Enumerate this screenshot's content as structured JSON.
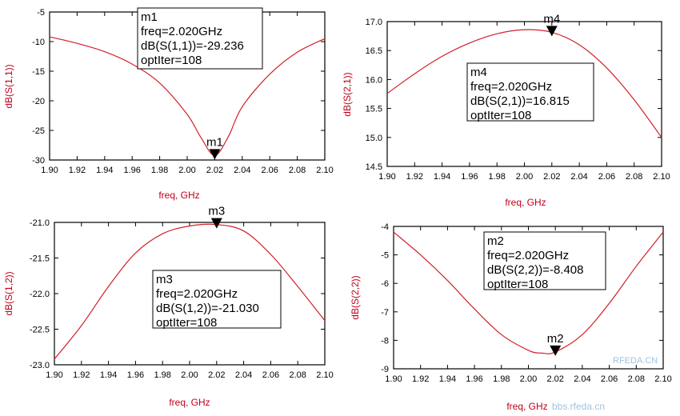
{
  "colors": {
    "curve": "#d21f2a",
    "axis_label": "#c0001a",
    "frame": "#000000",
    "marker": "#000000"
  },
  "chart_data": [
    {
      "type": "line",
      "series": [
        {
          "x": [
            1.9,
            1.92,
            1.94,
            1.96,
            1.98,
            2.0,
            2.01,
            2.02,
            2.03,
            2.04,
            2.06,
            2.08,
            2.1
          ],
          "values": [
            -9.2,
            -10.3,
            -11.7,
            -13.8,
            -17.0,
            -22.3,
            -26.2,
            -29.236,
            -26.0,
            -21.0,
            -15.5,
            -11.8,
            -9.5
          ]
        }
      ],
      "xlim": [
        1.9,
        2.1
      ],
      "ylim": [
        -30,
        -5
      ],
      "xticks": [
        "1.90",
        "1.92",
        "1.94",
        "1.96",
        "1.98",
        "2.00",
        "2.02",
        "2.04",
        "2.06",
        "2.08",
        "2.10"
      ],
      "yticks": [
        "-5",
        "-10",
        "-15",
        "-20",
        "-25",
        "-30"
      ],
      "xlabel": "freq, GHz",
      "ylabel": "dB(S(1,1))",
      "marker": {
        "name": "m1",
        "x": 2.02,
        "y": -29.236,
        "lines": [
          "m1",
          "freq=2.020GHz",
          "dB(S(1,1))=-29.236",
          "optIter=108"
        ]
      }
    },
    {
      "type": "line",
      "series": [
        {
          "x": [
            1.9,
            1.92,
            1.94,
            1.96,
            1.98,
            2.0,
            2.02,
            2.04,
            2.06,
            2.08,
            2.1
          ],
          "values": [
            15.76,
            16.1,
            16.4,
            16.63,
            16.79,
            16.86,
            16.815,
            16.6,
            16.2,
            15.65,
            15.0
          ]
        }
      ],
      "xlim": [
        1.9,
        2.1
      ],
      "ylim": [
        14.5,
        17.0
      ],
      "xticks": [
        "1.90",
        "1.92",
        "1.94",
        "1.96",
        "1.98",
        "2.00",
        "2.02",
        "2.04",
        "2.06",
        "2.08",
        "2.10"
      ],
      "yticks": [
        "17.0",
        "16.5",
        "16.0",
        "15.5",
        "15.0",
        "14.5"
      ],
      "xlabel": "freq, GHz",
      "ylabel": "dB(S(2,1))",
      "marker": {
        "name": "m4",
        "x": 2.02,
        "y": 16.815,
        "lines": [
          "m4",
          "freq=2.020GHz",
          "dB(S(2,1))=16.815",
          "optIter=108"
        ]
      }
    },
    {
      "type": "line",
      "series": [
        {
          "x": [
            1.9,
            1.92,
            1.94,
            1.96,
            1.98,
            2.0,
            2.02,
            2.04,
            2.06,
            2.08,
            2.1
          ],
          "values": [
            -22.92,
            -22.45,
            -21.9,
            -21.43,
            -21.16,
            -21.05,
            -21.03,
            -21.12,
            -21.45,
            -21.9,
            -22.38
          ]
        }
      ],
      "xlim": [
        1.9,
        2.1
      ],
      "ylim": [
        -23.0,
        -21.0
      ],
      "xticks": [
        "1.90",
        "1.92",
        "1.94",
        "1.96",
        "1.98",
        "2.00",
        "2.02",
        "2.04",
        "2.06",
        "2.08",
        "2.10"
      ],
      "yticks": [
        "-21.0",
        "-21.5",
        "-22.0",
        "-22.5",
        "-23.0"
      ],
      "xlabel": "freq, GHz",
      "ylabel": "dB(S(1,2))",
      "marker": {
        "name": "m3",
        "x": 2.02,
        "y": -21.03,
        "lines": [
          "m3",
          "freq=2.020GHz",
          "dB(S(1,2))=-21.030",
          "optIter=108"
        ]
      }
    },
    {
      "type": "line",
      "series": [
        {
          "x": [
            1.9,
            1.92,
            1.94,
            1.96,
            1.98,
            2.0,
            2.01,
            2.02,
            2.04,
            2.06,
            2.08,
            2.1
          ],
          "values": [
            -4.2,
            -5.0,
            -5.9,
            -6.9,
            -7.8,
            -8.35,
            -8.45,
            -8.408,
            -7.8,
            -6.7,
            -5.4,
            -4.2
          ]
        }
      ],
      "xlim": [
        1.9,
        2.1
      ],
      "ylim": [
        -9,
        -4
      ],
      "xticks": [
        "1.90",
        "1.92",
        "1.94",
        "1.96",
        "1.98",
        "2.00",
        "2.02",
        "2.04",
        "2.06",
        "2.08",
        "2.10"
      ],
      "yticks": [
        "-4",
        "-5",
        "-6",
        "-7",
        "-8",
        "-9"
      ],
      "xlabel": "freq, GHz",
      "ylabel": "dB(S(2,2))",
      "marker": {
        "name": "m2",
        "x": 2.02,
        "y": -8.408,
        "lines": [
          "m2",
          "freq=2.020GHz",
          "dB(S(2,2))=-8.408",
          "optIter=108"
        ]
      }
    }
  ],
  "watermark": {
    "site": "RFEDA.CN",
    "url": "bbs.rfeda.cn"
  }
}
